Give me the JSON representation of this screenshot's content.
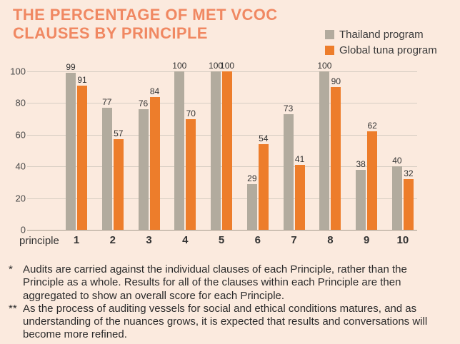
{
  "title": {
    "line1": "THE PERCENTAGE OF MET VCOC",
    "line2": "CLAUSES BY PRINCIPLE"
  },
  "legend": {
    "items": [
      {
        "label": "Thailand program",
        "color": "#b2ab9e"
      },
      {
        "label": "Global tuna program",
        "color": "#ed7d2b"
      }
    ]
  },
  "chart_data": {
    "type": "bar",
    "title": "THE PERCENTAGE OF MET VCOC CLAUSES BY PRINCIPLE",
    "categories": [
      "1",
      "2",
      "3",
      "4",
      "5",
      "6",
      "7",
      "8",
      "9",
      "10"
    ],
    "series": [
      {
        "name": "Thailand program",
        "color": "#b2ab9e",
        "values": [
          99,
          77,
          76,
          100,
          100,
          29,
          73,
          100,
          38,
          40
        ]
      },
      {
        "name": "Global tuna program",
        "color": "#ed7d2b",
        "values": [
          91,
          57,
          84,
          70,
          100,
          54,
          41,
          90,
          62,
          32
        ]
      }
    ],
    "xlabel": "principle",
    "ylabel": "",
    "ylim": [
      0,
      100
    ],
    "yticks": [
      0,
      20,
      40,
      60,
      80,
      100
    ],
    "grid": true,
    "legend_position": "top-right",
    "value_labels": true
  },
  "footnotes": [
    {
      "marker": "*",
      "text": "Audits are carried against the individual clauses of each Principle, rather than the Principle as a whole. Results for all of the clauses within each Principle are then aggregated to show an overall score for each Principle."
    },
    {
      "marker": "**",
      "text": "As the process of auditing vessels for social and ethical conditions matures, and as understanding of the nuances grows, it is expected that results and conversations will become more refined."
    }
  ],
  "colors": {
    "background": "#fbeade",
    "title": "#f08862",
    "bar_thailand": "#b2ab9e",
    "bar_global": "#ed7d2b",
    "gridline": "#d6cdc2",
    "baseline": "#a49b8e",
    "text": "#333333"
  }
}
